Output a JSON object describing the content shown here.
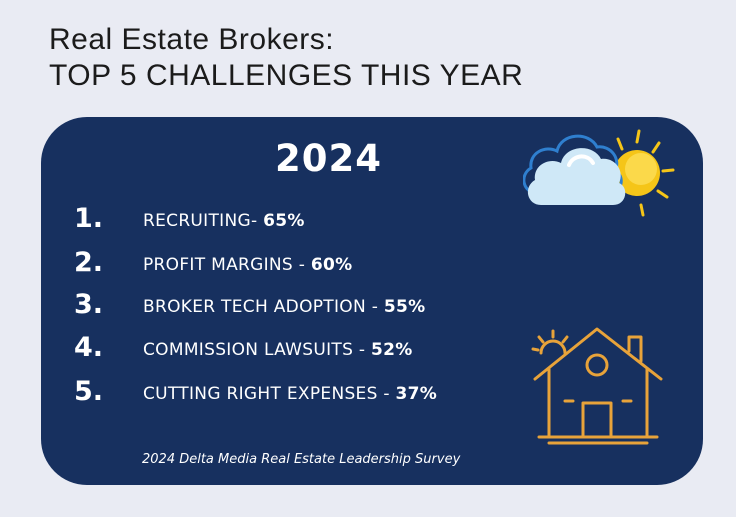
{
  "header": {
    "line1": "Real Estate Brokers:",
    "line2": "TOP 5 CHALLENGES THIS YEAR"
  },
  "card": {
    "year": "2024",
    "items": [
      {
        "num": "1.",
        "label": "RECRUITING- ",
        "pct": "65%"
      },
      {
        "num": "2.",
        "label": "PROFIT MARGINS - ",
        "pct": "60%"
      },
      {
        "num": "3.",
        "label": "BROKER TECH ADOPTION - ",
        "pct": "55%"
      },
      {
        "num": "4.",
        "label": "COMMISSION LAWSUITS - ",
        "pct": "52%"
      },
      {
        "num": "5.",
        "label": "CUTTING RIGHT EXPENSES - ",
        "pct": "37%"
      }
    ],
    "footnote": "2024 Delta Media Real Estate Leadership Survey"
  },
  "icons": {
    "weather": "cloud-sun-icon",
    "house": "house-icon"
  },
  "colors": {
    "background": "#e9ebf3",
    "card": "#17305f",
    "text_light": "#ffffff",
    "sun": "#f5c518",
    "cloud": "#cfe8f7",
    "house_line": "#e8a33a"
  }
}
